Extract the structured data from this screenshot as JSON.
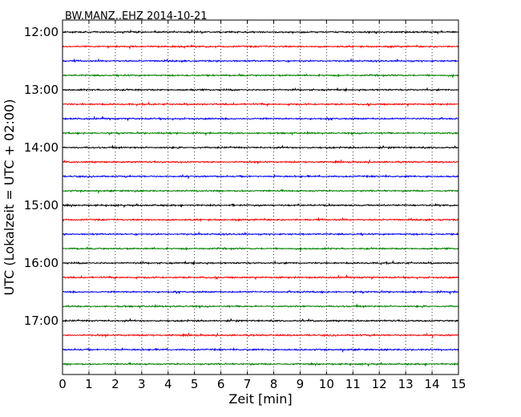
{
  "chart_data": {
    "type": "line",
    "title": "BW.MANZ..EHZ 2014-10-21",
    "xlabel": "Zeit  [min]",
    "ylabel": "UTC (Lokalzeit = UTC + 02:00)",
    "xlim": [
      0,
      15
    ],
    "xticks": [
      0,
      1,
      2,
      3,
      4,
      5,
      6,
      7,
      8,
      9,
      10,
      11,
      12,
      13,
      14,
      15
    ],
    "y_tick_labels": [
      "12:00",
      "13:00",
      "14:00",
      "15:00",
      "16:00",
      "17:00"
    ],
    "grid": "vertical dotted",
    "trace_interval_minutes": 15,
    "trace_colors": [
      "#000000",
      "#ff0000",
      "#0000ff",
      "#008000"
    ],
    "series": [
      {
        "start": "12:00",
        "color": "#000000"
      },
      {
        "start": "12:15",
        "color": "#ff0000"
      },
      {
        "start": "12:30",
        "color": "#0000ff"
      },
      {
        "start": "12:45",
        "color": "#008000"
      },
      {
        "start": "13:00",
        "color": "#000000"
      },
      {
        "start": "13:15",
        "color": "#ff0000"
      },
      {
        "start": "13:30",
        "color": "#0000ff"
      },
      {
        "start": "13:45",
        "color": "#008000"
      },
      {
        "start": "14:00",
        "color": "#000000"
      },
      {
        "start": "14:15",
        "color": "#ff0000"
      },
      {
        "start": "14:30",
        "color": "#0000ff"
      },
      {
        "start": "14:45",
        "color": "#008000"
      },
      {
        "start": "15:00",
        "color": "#000000"
      },
      {
        "start": "15:15",
        "color": "#ff0000"
      },
      {
        "start": "15:30",
        "color": "#0000ff"
      },
      {
        "start": "15:45",
        "color": "#008000"
      },
      {
        "start": "16:00",
        "color": "#000000"
      },
      {
        "start": "16:15",
        "color": "#ff0000"
      },
      {
        "start": "16:30",
        "color": "#0000ff"
      },
      {
        "start": "16:45",
        "color": "#008000"
      },
      {
        "start": "17:00",
        "color": "#000000"
      },
      {
        "start": "17:15",
        "color": "#ff0000"
      },
      {
        "start": "17:30",
        "color": "#0000ff"
      },
      {
        "start": "17:45",
        "color": "#008000"
      }
    ]
  }
}
